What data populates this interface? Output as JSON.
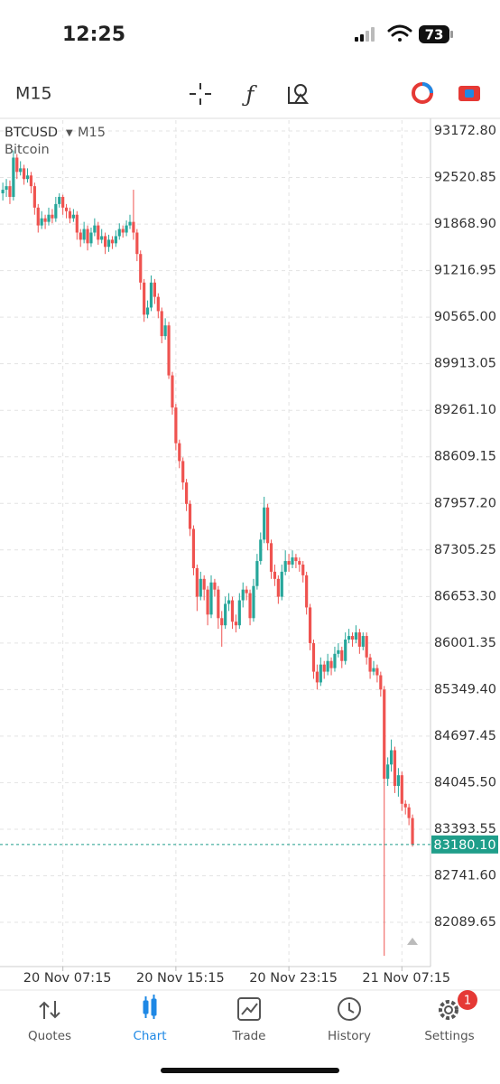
{
  "status_bar": {
    "time": "12:25",
    "battery": "73"
  },
  "toolbar": {
    "timeframe": "M15"
  },
  "chart_data": {
    "type": "candlestick",
    "symbol": "BTCUSD",
    "timeframe": "M15",
    "description": "Bitcoin",
    "up_color": "#26a69a",
    "down_color": "#ef5350",
    "open": [
      92300,
      92350,
      92400,
      92250,
      92800,
      92600,
      92650,
      92500,
      92550,
      92400,
      92100,
      91850,
      91950,
      91900,
      92000,
      91950,
      92150,
      92250,
      92100,
      92050,
      91950,
      92000,
      91750,
      91650,
      91800,
      91600,
      91750,
      91850,
      91650,
      91700,
      91550,
      91650,
      91600,
      91700,
      91800,
      91750,
      91850,
      91900,
      91750,
      91450,
      91050,
      90600,
      90700,
      91050,
      90850,
      90650,
      90300,
      90450,
      89750,
      89300,
      88800,
      88550,
      88250,
      87950,
      87600,
      87050,
      86650,
      86900,
      86750,
      86400,
      86850,
      86750,
      86350,
      86250,
      86550,
      86600,
      86300,
      86250,
      86600,
      86750,
      86700,
      86350,
      86800,
      87150,
      87450,
      87900,
      87400,
      87000,
      86900,
      86650,
      87000,
      87150,
      87100,
      87200,
      87150,
      87100,
      86950,
      86500,
      86000,
      85600,
      85450,
      85700,
      85600,
      85750,
      85650,
      85850,
      85900,
      85750,
      86050,
      86100,
      86050,
      86150,
      85950,
      86100,
      85800,
      85600,
      85650,
      85550,
      85350,
      84100,
      84300,
      84500,
      84000,
      84150,
      83750,
      83700,
      83550
    ],
    "high": [
      92450,
      92500,
      92480,
      92900,
      92850,
      92750,
      92700,
      92650,
      92600,
      92450,
      92150,
      92050,
      92000,
      92100,
      92080,
      92250,
      92300,
      92280,
      92150,
      92100,
      92080,
      92050,
      91800,
      91900,
      91850,
      91820,
      91950,
      91900,
      91800,
      91750,
      91720,
      91700,
      91780,
      91880,
      91850,
      91920,
      92000,
      92350,
      91800,
      91500,
      91100,
      90800,
      91150,
      91100,
      90900,
      90700,
      90550,
      90500,
      89800,
      89350,
      88850,
      88600,
      88300,
      88000,
      87650,
      87100,
      87000,
      86950,
      86800,
      86950,
      86900,
      86800,
      86450,
      86650,
      86700,
      86650,
      86400,
      86700,
      86850,
      86800,
      86750,
      86900,
      87250,
      87550,
      88050,
      87950,
      87450,
      87100,
      86950,
      87100,
      87300,
      87250,
      87300,
      87250,
      87200,
      87150,
      87000,
      86550,
      86050,
      85700,
      85800,
      85750,
      85850,
      85800,
      85950,
      86000,
      85950,
      86150,
      86200,
      86150,
      86250,
      86200,
      86150,
      86150,
      85850,
      85750,
      85700,
      85600,
      85400,
      84400,
      84650,
      84550,
      84250,
      84200,
      83800,
      83750,
      83600
    ],
    "low": [
      92200,
      92250,
      92150,
      92200,
      92500,
      92550,
      92420,
      92450,
      92300,
      92000,
      91750,
      91800,
      91800,
      91850,
      91880,
      91900,
      92100,
      92000,
      91950,
      91880,
      91900,
      91650,
      91550,
      91600,
      91500,
      91550,
      91700,
      91580,
      91600,
      91450,
      91480,
      91520,
      91550,
      91650,
      91680,
      91700,
      91800,
      91650,
      91350,
      90950,
      90500,
      90550,
      90650,
      90750,
      90550,
      90200,
      90250,
      89700,
      89200,
      88700,
      88450,
      88150,
      87850,
      87500,
      86950,
      86450,
      86600,
      86600,
      86250,
      86350,
      86650,
      86200,
      85950,
      86200,
      86450,
      86200,
      86150,
      86200,
      86500,
      86600,
      86250,
      86300,
      86750,
      87100,
      87400,
      87300,
      86900,
      86800,
      86550,
      86600,
      86950,
      87000,
      87050,
      87050,
      87000,
      86850,
      86400,
      85900,
      85500,
      85350,
      85400,
      85500,
      85550,
      85550,
      85600,
      85800,
      85650,
      85700,
      86000,
      85950,
      86000,
      85850,
      85900,
      85700,
      85500,
      85550,
      85450,
      85250,
      81620,
      84000,
      84200,
      83900,
      83850,
      83650,
      83600,
      83450,
      83150
    ],
    "close": [
      92350,
      92400,
      92250,
      92800,
      92600,
      92650,
      92500,
      92550,
      92400,
      92100,
      91850,
      91950,
      91900,
      92000,
      91950,
      92150,
      92250,
      92100,
      92050,
      91950,
      92000,
      91750,
      91650,
      91800,
      91600,
      91750,
      91850,
      91650,
      91700,
      91550,
      91650,
      91600,
      91700,
      91800,
      91750,
      91850,
      91900,
      91750,
      91450,
      91050,
      90600,
      90700,
      91050,
      90850,
      90650,
      90300,
      90450,
      89750,
      89300,
      88800,
      88550,
      88250,
      87950,
      87600,
      87050,
      86650,
      86900,
      86750,
      86400,
      86850,
      86750,
      86350,
      86250,
      86550,
      86600,
      86300,
      86250,
      86600,
      86750,
      86700,
      86350,
      86800,
      87150,
      87450,
      87900,
      87400,
      87000,
      86900,
      86650,
      87000,
      87150,
      87100,
      87200,
      87150,
      87100,
      86950,
      86500,
      86000,
      85600,
      85450,
      85700,
      85600,
      85750,
      85650,
      85850,
      85900,
      85750,
      86050,
      86100,
      86050,
      86150,
      85950,
      86100,
      85800,
      85600,
      85650,
      85550,
      85350,
      84100,
      84300,
      84500,
      84000,
      84150,
      83750,
      83700,
      83550,
      83180.1
    ],
    "xlim": [
      -0.8,
      121.1
    ],
    "xticks": [
      {
        "value": 17,
        "label": "20 Nov 07:15"
      },
      {
        "value": 49,
        "label": "20 Nov 15:15"
      },
      {
        "value": 81,
        "label": "20 Nov 23:15"
      },
      {
        "value": 113,
        "label": "21 Nov 07:15"
      }
    ],
    "ylim": [
      81470,
      93325
    ],
    "yticks": [
      {
        "value": 93172.8,
        "label": "93172.80"
      },
      92520.85,
      {
        "value": 91868.9,
        "label": "91868.90"
      },
      91216.95,
      {
        "value": 90565,
        "label": "90565.00"
      },
      89913.05,
      {
        "value": 89261.1,
        "label": "89261.10"
      },
      88609.15,
      {
        "value": 87957.2,
        "label": "87957.20"
      },
      87305.25,
      {
        "value": 86653.3,
        "label": "86653.30"
      },
      86001.35,
      {
        "value": 85349.4,
        "label": "85349.40"
      },
      84697.45,
      {
        "value": 84045.5,
        "label": "84045.50"
      },
      83393.55,
      {
        "value": 82741.6,
        "label": "82741.60"
      },
      82089.65
    ],
    "grid": true,
    "current_price": {
      "value": 83180.1,
      "label": "83180.10"
    },
    "current_price_color": "#1f9e8a"
  },
  "tab_bar": {
    "tabs": [
      {
        "label": "Quotes"
      },
      {
        "label": "Chart"
      },
      {
        "label": "Trade"
      },
      {
        "label": "History"
      },
      {
        "label": "Settings"
      }
    ],
    "active": 1,
    "active_color": "#1e88e5",
    "badge": "1"
  }
}
